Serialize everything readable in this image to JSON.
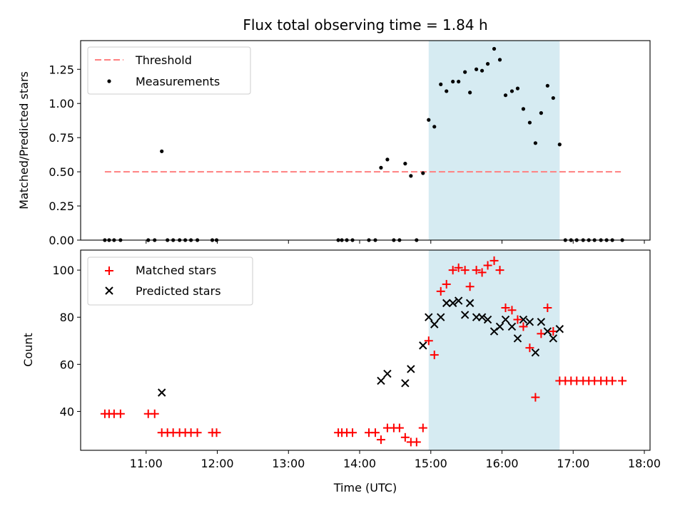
{
  "title": "Flux total observing time = 1.84 h",
  "xlabel": "Time (UTC)",
  "xlim_hours": [
    10.08,
    18.08
  ],
  "x_ticks": [
    {
      "h": 11,
      "label": "11:00"
    },
    {
      "h": 12,
      "label": "12:00"
    },
    {
      "h": 13,
      "label": "13:00"
    },
    {
      "h": 14,
      "label": "14:00"
    },
    {
      "h": 15,
      "label": "15:00"
    },
    {
      "h": 16,
      "label": "16:00"
    },
    {
      "h": 17,
      "label": "17:00"
    },
    {
      "h": 18,
      "label": "18:00"
    }
  ],
  "shaded_span_hours": [
    14.97,
    16.81
  ],
  "colors": {
    "threshold": "#ff8080",
    "measurements": "#000000",
    "matched": "#ff0000",
    "predicted": "#000000",
    "span": "#add8e6"
  },
  "chart_data": [
    {
      "type": "scatter",
      "ylabel": "Matched/Predicted stars",
      "ylim": [
        0,
        1.46
      ],
      "y_ticks": [
        "0.00",
        "0.25",
        "0.50",
        "0.75",
        "1.00",
        "1.25"
      ],
      "threshold": {
        "name": "Threshold",
        "y": 0.5,
        "x_range": [
          10.42,
          17.67
        ]
      },
      "legend": {
        "position": "top-left",
        "entries": [
          "Threshold",
          "Measurements"
        ]
      },
      "series": [
        {
          "name": "Measurements",
          "x": [
            10.42,
            10.48,
            10.55,
            10.64,
            11.03,
            11.12,
            11.22,
            11.3,
            11.38,
            11.47,
            11.55,
            11.63,
            11.72,
            11.93,
            11.99,
            13.7,
            13.75,
            13.82,
            13.9,
            14.13,
            14.22,
            14.3,
            14.39,
            14.48,
            14.56,
            14.64,
            14.72,
            14.8,
            14.89,
            14.97,
            15.05,
            15.14,
            15.22,
            15.31,
            15.39,
            15.48,
            15.55,
            15.64,
            15.72,
            15.8,
            15.89,
            15.97,
            16.05,
            16.14,
            16.22,
            16.3,
            16.39,
            16.47,
            16.55,
            16.64,
            16.72,
            16.81,
            16.89,
            16.97,
            17.05,
            17.14,
            17.22,
            17.3,
            17.39,
            17.47,
            17.55,
            17.69
          ],
          "y": [
            0,
            0,
            0,
            0,
            0,
            0,
            0.65,
            0,
            0,
            0,
            0,
            0,
            0,
            0,
            0,
            0,
            0,
            0,
            0,
            0,
            0,
            0.53,
            0.59,
            0,
            0,
            0.56,
            0.47,
            0,
            0.49,
            0.88,
            0.83,
            1.14,
            1.09,
            1.16,
            1.16,
            1.23,
            1.08,
            1.25,
            1.24,
            1.29,
            1.4,
            1.32,
            1.06,
            1.09,
            1.11,
            0.96,
            0.86,
            0.71,
            0.93,
            1.13,
            1.04,
            0.7,
            0,
            0,
            0,
            0,
            0,
            0,
            0,
            0,
            0,
            0
          ]
        }
      ]
    },
    {
      "type": "scatter",
      "ylabel": "Count",
      "ylim": [
        23.5,
        108.5
      ],
      "y_ticks": [
        "40",
        "60",
        "80",
        "100"
      ],
      "legend": {
        "position": "top-left",
        "entries": [
          "Matched stars",
          "Predicted stars"
        ]
      },
      "series": [
        {
          "name": "Matched stars",
          "x": [
            10.42,
            10.48,
            10.55,
            10.64,
            11.03,
            11.12,
            11.22,
            11.3,
            11.38,
            11.47,
            11.55,
            11.63,
            11.72,
            11.93,
            11.99,
            13.7,
            13.75,
            13.82,
            13.9,
            14.13,
            14.22,
            14.3,
            14.39,
            14.48,
            14.56,
            14.64,
            14.72,
            14.8,
            14.89,
            14.97,
            15.05,
            15.14,
            15.22,
            15.31,
            15.39,
            15.48,
            15.55,
            15.64,
            15.72,
            15.8,
            15.89,
            15.97,
            16.05,
            16.14,
            16.22,
            16.3,
            16.39,
            16.47,
            16.55,
            16.64,
            16.72,
            16.81,
            16.89,
            16.97,
            17.05,
            17.14,
            17.22,
            17.3,
            17.39,
            17.47,
            17.55,
            17.69
          ],
          "y": [
            39,
            39,
            39,
            39,
            39,
            39,
            31,
            31,
            31,
            31,
            31,
            31,
            31,
            31,
            31,
            31,
            31,
            31,
            31,
            31,
            31,
            28,
            33,
            33,
            33,
            29,
            27,
            27,
            33,
            70,
            64,
            91,
            94,
            100,
            101,
            100,
            93,
            100,
            99,
            102,
            104,
            100,
            84,
            83,
            79,
            76,
            67,
            46,
            73,
            84,
            74,
            53,
            53,
            53,
            53,
            53,
            53,
            53,
            53,
            53,
            53,
            53
          ]
        },
        {
          "name": "Predicted stars",
          "x": [
            11.22,
            14.3,
            14.39,
            14.64,
            14.72,
            14.89,
            14.97,
            15.05,
            15.14,
            15.22,
            15.31,
            15.39,
            15.48,
            15.55,
            15.64,
            15.72,
            15.8,
            15.89,
            15.97,
            16.05,
            16.14,
            16.22,
            16.3,
            16.39,
            16.47,
            16.55,
            16.64,
            16.72,
            16.81
          ],
          "y": [
            48,
            53,
            56,
            52,
            58,
            68,
            80,
            77,
            80,
            86,
            86,
            87,
            81,
            86,
            80,
            80,
            79,
            74,
            76,
            79,
            76,
            71,
            79,
            78,
            65,
            78,
            74,
            71,
            75
          ]
        }
      ]
    }
  ]
}
